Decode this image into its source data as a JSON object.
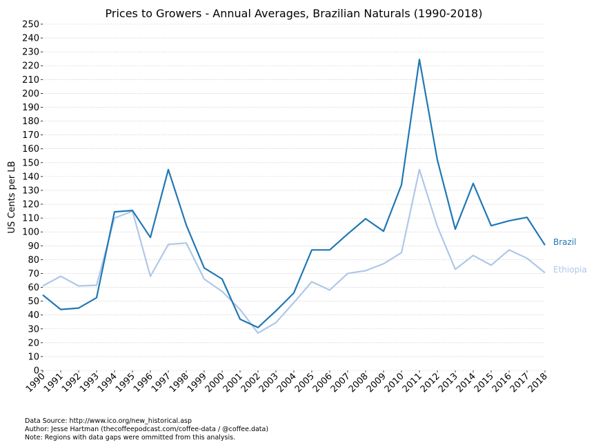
{
  "chart_data": {
    "type": "line",
    "title": "Prices to Growers - Annual Averages, Brazilian Naturals (1990-2018)",
    "xlabel": "",
    "ylabel": "US Cents per LB",
    "x": [
      1990,
      1991,
      1992,
      1993,
      1994,
      1995,
      1996,
      1997,
      1998,
      1999,
      2000,
      2001,
      2002,
      2003,
      2004,
      2005,
      2006,
      2007,
      2008,
      2009,
      2010,
      2011,
      2012,
      2013,
      2014,
      2015,
      2016,
      2017,
      2018
    ],
    "ylim": [
      0,
      250
    ],
    "ytick_step": 10,
    "grid": true,
    "series": [
      {
        "name": "Brazil",
        "color": "#1f77b4",
        "values": [
          54.5,
          44,
          45,
          52.5,
          114.5,
          115.5,
          96,
          145,
          105,
          74,
          66,
          37,
          31,
          43,
          56,
          87,
          87,
          98.5,
          109.5,
          100.5,
          134,
          224.5,
          152,
          102,
          135,
          104.5,
          108,
          110.5,
          90.5
        ]
      },
      {
        "name": "Ethiopia",
        "color": "#aec7e8",
        "values": [
          61,
          68,
          61,
          61.5,
          110,
          115,
          68,
          91,
          92,
          66,
          57,
          44,
          27,
          34.5,
          49,
          64,
          58,
          70,
          72,
          77,
          85,
          145,
          104,
          73,
          83,
          76,
          87,
          81,
          70.5
        ]
      }
    ]
  },
  "footer": {
    "line1": "Data Source: http://www.ico.org/new_historical.asp",
    "line2": "Author: Jesse Hartman (thecoffeepodcast.com/coffee-data / @coffee.data)",
    "line3": "Note: Regions with data gaps were ommitted from this analysis."
  }
}
